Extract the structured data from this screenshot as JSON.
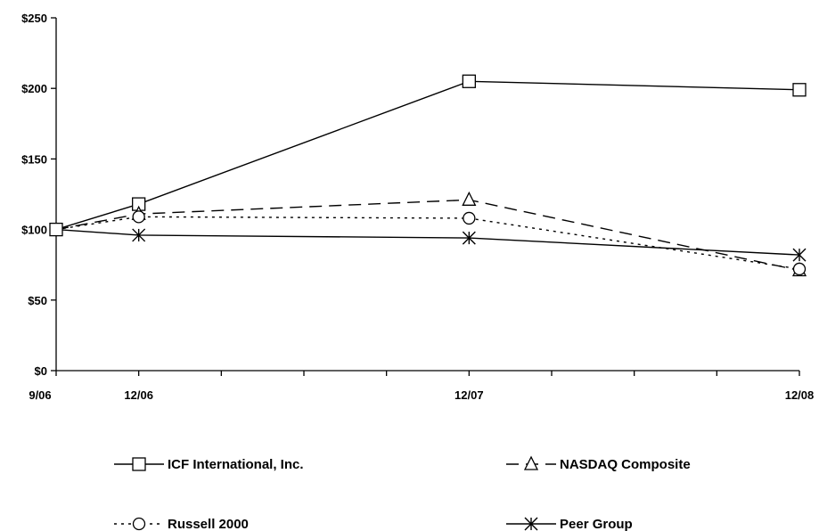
{
  "chart_data": {
    "type": "line",
    "title": "",
    "xlabel": "",
    "ylabel": "",
    "x": [
      "9/06",
      "12/06",
      "12/07",
      "12/08"
    ],
    "x_months": [
      0,
      3,
      15,
      27
    ],
    "ylim": [
      0,
      250
    ],
    "yticks": [
      0,
      50,
      100,
      150,
      200,
      250
    ],
    "ytick_labels": [
      "$0",
      "$50",
      "$100",
      "$150",
      "$200",
      "$250"
    ],
    "grid": false,
    "legend_position": "bottom",
    "series": [
      {
        "name": "ICF International, Inc.",
        "values": [
          100,
          118,
          205,
          199
        ],
        "marker": "square",
        "line_style": "solid"
      },
      {
        "name": "NASDAQ Composite",
        "values": [
          100,
          111,
          121,
          71
        ],
        "marker": "triangle",
        "line_style": "dashed"
      },
      {
        "name": "Russell 2000",
        "values": [
          100,
          109,
          108,
          72
        ],
        "marker": "circle",
        "line_style": "dotted"
      },
      {
        "name": "Peer Group",
        "values": [
          100,
          96,
          94,
          82
        ],
        "marker": "asterisk",
        "line_style": "solid"
      }
    ]
  }
}
